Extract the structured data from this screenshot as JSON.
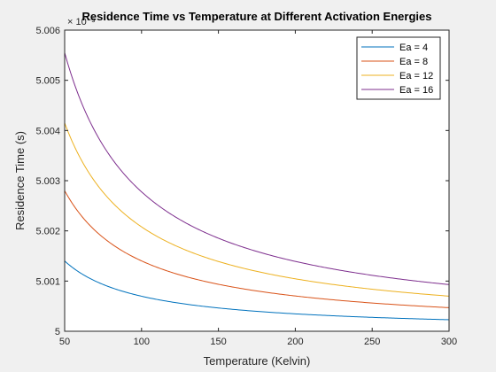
{
  "chart_data": {
    "type": "line",
    "title": "Residence Time vs Temperature at Different Activation Energies",
    "xlabel": "Temperature (Kelvin)",
    "ylabel": "Residence Time (s)",
    "xlim": [
      50,
      300
    ],
    "ylim": [
      5.0,
      5.006
    ],
    "y_exponent_label": "× 10⁻³",
    "x_ticks": [
      50,
      100,
      150,
      200,
      250,
      300
    ],
    "y_ticks": [
      5,
      5.001,
      5.002,
      5.003,
      5.004,
      5.005,
      5.006
    ],
    "y_tick_labels": [
      "5",
      "5.001",
      "5.002",
      "5.003",
      "5.004",
      "5.005",
      "5.006"
    ],
    "grid": false,
    "legend_position": "top-right",
    "x": [
      50,
      75,
      100,
      125,
      150,
      175,
      200,
      225,
      250,
      275,
      300
    ],
    "series": [
      {
        "name": "Ea = 4",
        "color": "#0072BD",
        "values": [
          5.0014,
          5.00091,
          5.00069,
          5.00056,
          5.00047,
          5.0004,
          5.00035,
          5.00031,
          5.00028,
          5.00025,
          5.00023
        ]
      },
      {
        "name": "Ea = 8",
        "color": "#D95319",
        "values": [
          5.0028,
          5.00186,
          5.00139,
          5.00111,
          5.00093,
          5.0008,
          5.0007,
          5.00062,
          5.00056,
          5.00051,
          5.00047
        ]
      },
      {
        "name": "Ea = 12",
        "color": "#EDB120",
        "values": [
          5.00415,
          5.00278,
          5.00208,
          5.00167,
          5.00139,
          5.00119,
          5.00104,
          5.00093,
          5.00083,
          5.00076,
          5.0007
        ]
      },
      {
        "name": "Ea = 16",
        "color": "#7E2F8E",
        "values": [
          5.00555,
          5.00371,
          5.00278,
          5.00222,
          5.00185,
          5.00159,
          5.00139,
          5.00124,
          5.00111,
          5.00101,
          5.00093
        ]
      }
    ]
  }
}
